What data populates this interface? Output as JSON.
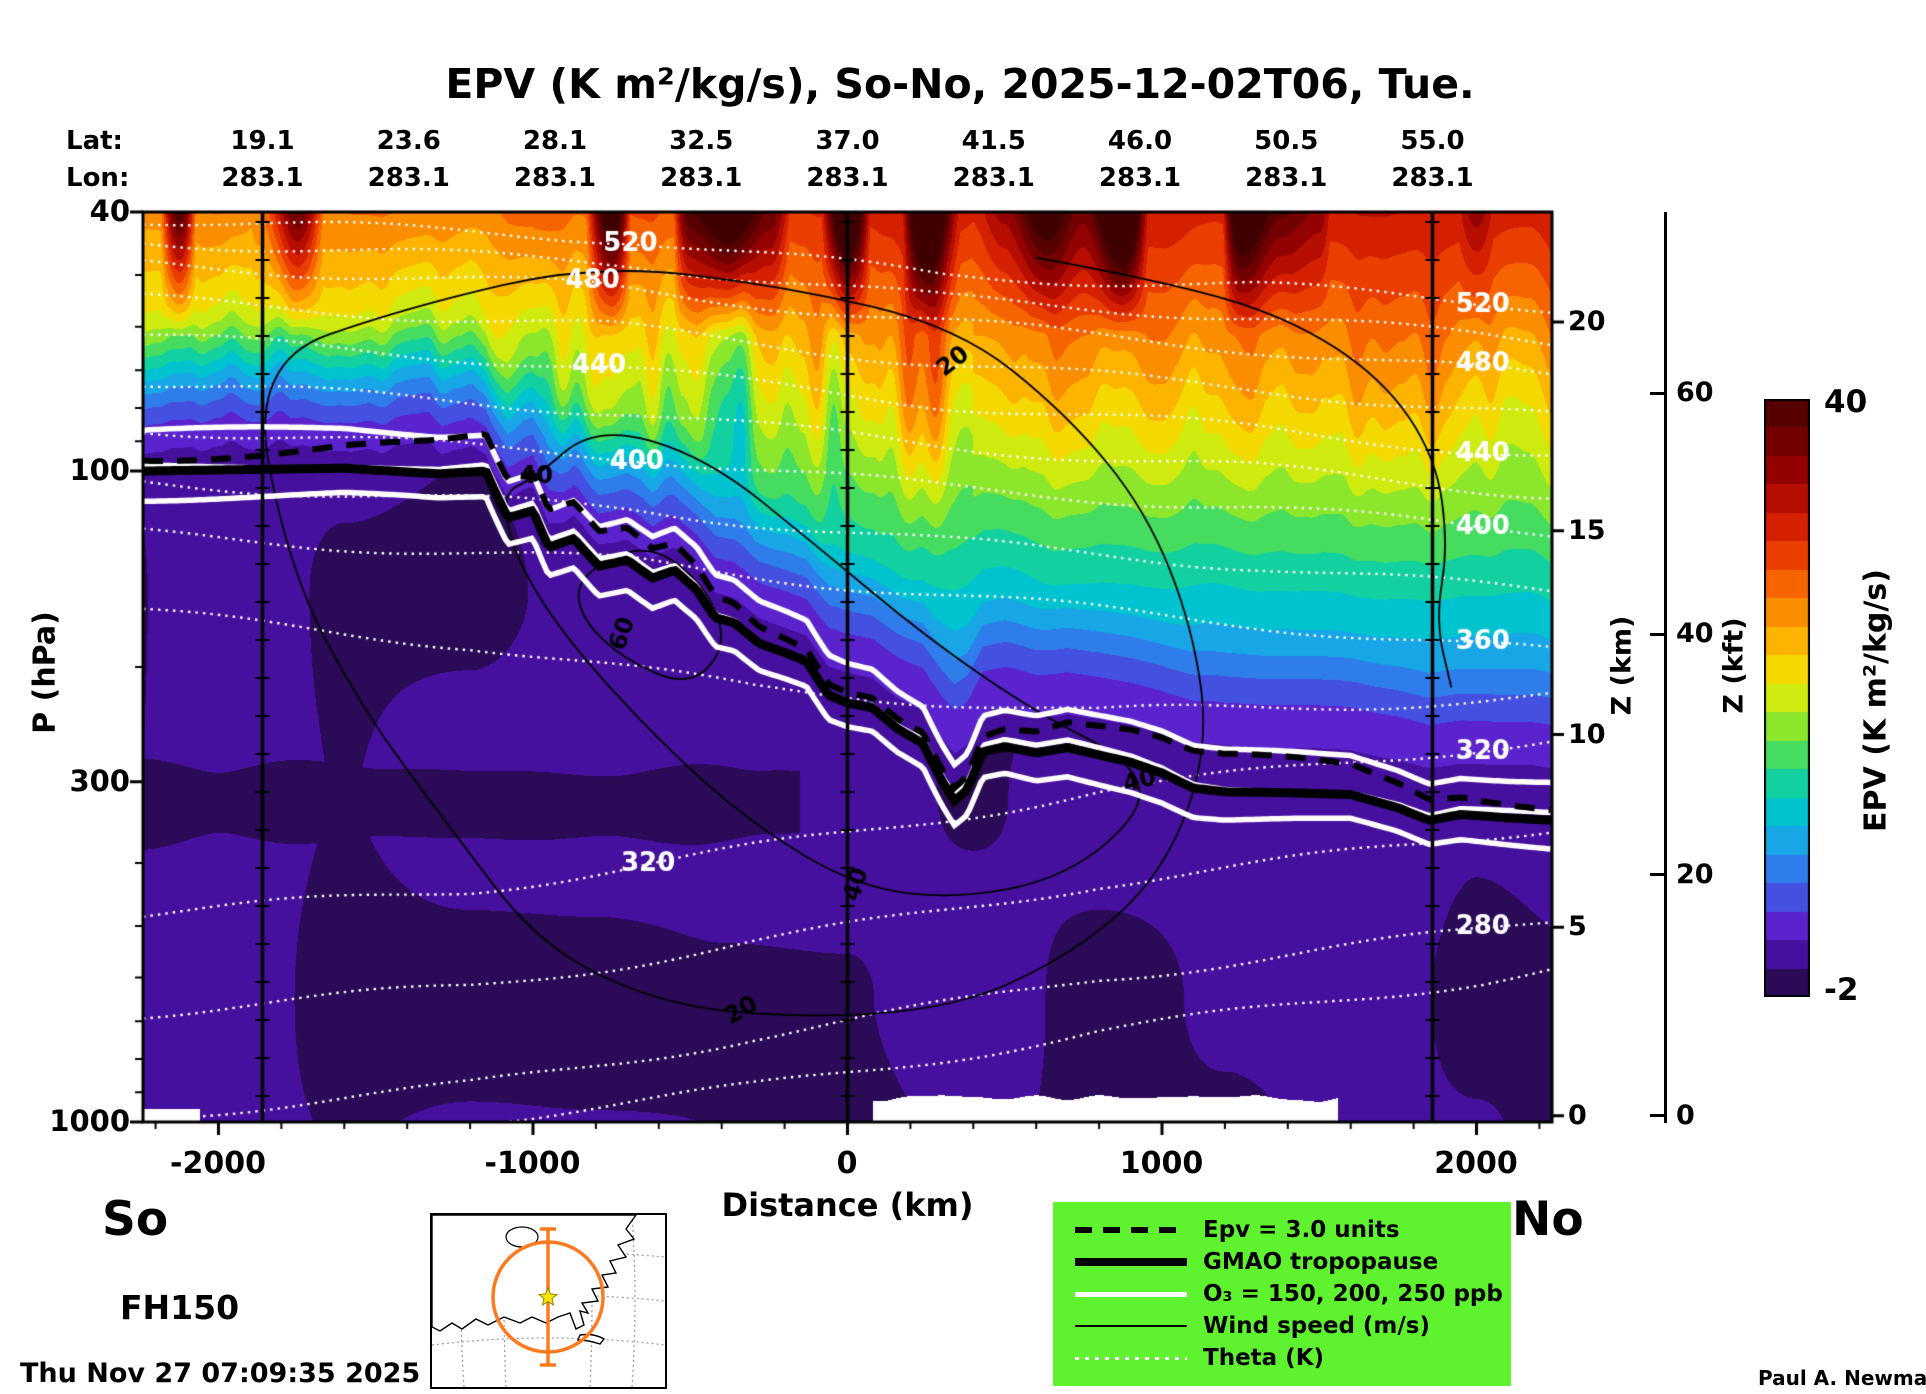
{
  "title": "EPV (K m²/kg/s), So-No, 2025-12-02T06, Tue.",
  "header": {
    "lat_prefix": "Lat:",
    "lon_prefix": "Lon:",
    "lat_values": [
      "19.1",
      "23.6",
      "28.1",
      "32.5",
      "37.0",
      "41.5",
      "46.0",
      "50.5",
      "55.0"
    ],
    "lon_values": [
      "283.1",
      "283.1",
      "283.1",
      "283.1",
      "283.1",
      "283.1",
      "283.1",
      "283.1",
      "283.1"
    ]
  },
  "axes": {
    "pressure_label": "P (hPa)",
    "distance_label": "Distance (km)",
    "z_km_label": "Z (km)",
    "z_kft_label": "Z (kft)",
    "distance_ticks": [
      "-2000",
      "-1000",
      "0",
      "1000",
      "2000"
    ]
  },
  "endpoints": {
    "south": "So",
    "north": "No"
  },
  "forecast_hour": "FH150",
  "timestamp": "Thu Nov 27 07:09:35 2025",
  "credit": "Paul A. Newman (NASA",
  "colorbar": {
    "label": "EPV (K m²/kg/s)",
    "max_label": "40",
    "min_label": "-2"
  },
  "legend": {
    "items": [
      {
        "style": "dashed-black",
        "label": "Epv = 3.0 units"
      },
      {
        "style": "thick-black",
        "label": "GMAO tropopause"
      },
      {
        "style": "white-solid",
        "label": "O₃ = 150, 200, 250 ppb"
      },
      {
        "style": "thin-black",
        "label": "Wind speed (m/s)"
      },
      {
        "style": "white-dotted",
        "label": "Theta (K)"
      }
    ]
  },
  "colors": {
    "legend_background": "#5ff22e",
    "map_path_orange": "#ff7a1e"
  },
  "chart_data": {
    "type": "heatmap",
    "title": "EPV (K m²/kg/s), So-No, 2025-12-02T06, Tue.",
    "xlabel": "Distance (km)",
    "ylabel": "P (hPa)",
    "x_range_km": [
      -2240,
      2240
    ],
    "x_ticks_km": [
      -2000,
      -1000,
      0,
      1000,
      2000
    ],
    "x_minor_step_km": 200,
    "pressure_range_hpa": [
      40,
      1000
    ],
    "pressure_ticks_hpa": [
      40,
      100,
      300,
      1000
    ],
    "pressure_minor_ticks_hpa": [
      50,
      60,
      70,
      80,
      90,
      200,
      400,
      500,
      600,
      700,
      800,
      900
    ],
    "z_km_ticks": [
      {
        "label": "0",
        "p": 978
      },
      {
        "label": "5",
        "p": 502
      },
      {
        "label": "10",
        "p": 254
      },
      {
        "label": "15",
        "p": 123.5
      },
      {
        "label": "20",
        "p": 59
      }
    ],
    "z_kft_ticks": [
      {
        "label": "0",
        "p": 978
      },
      {
        "label": "20",
        "p": 417
      },
      {
        "label": "40",
        "p": 178
      },
      {
        "label": "60",
        "p": 76
      }
    ],
    "section_lines_km": [
      -1860,
      0,
      1860
    ],
    "epv_range": [
      -2,
      40
    ],
    "colormap_stops": [
      [
        -2,
        "#2b0a57"
      ],
      [
        0,
        "#46109e"
      ],
      [
        2,
        "#5a23cd"
      ],
      [
        4,
        "#4350e0"
      ],
      [
        6,
        "#2f7ceb"
      ],
      [
        8,
        "#18a6e6"
      ],
      [
        10,
        "#00c3cf"
      ],
      [
        12,
        "#13d0a0"
      ],
      [
        14,
        "#45dc60"
      ],
      [
        16,
        "#8ce62c"
      ],
      [
        18,
        "#cfea0e"
      ],
      [
        20,
        "#f4d900"
      ],
      [
        22,
        "#fcb400"
      ],
      [
        24,
        "#fb8d00"
      ],
      [
        26,
        "#f66400"
      ],
      [
        28,
        "#e93e00"
      ],
      [
        30,
        "#d42000"
      ],
      [
        32,
        "#b50d00"
      ],
      [
        34,
        "#930200"
      ],
      [
        36,
        "#730000"
      ],
      [
        38,
        "#560000"
      ],
      [
        40,
        "#410000"
      ]
    ],
    "tropopause_km_hpa": [
      [
        -2240,
        100
      ],
      [
        -1600,
        99
      ],
      [
        -1300,
        101
      ],
      [
        -1150,
        100
      ],
      [
        -1080,
        118
      ],
      [
        -1000,
        115
      ],
      [
        -950,
        131
      ],
      [
        -870,
        127
      ],
      [
        -790,
        140
      ],
      [
        -700,
        137
      ],
      [
        -620,
        146
      ],
      [
        -550,
        142
      ],
      [
        -480,
        152
      ],
      [
        -420,
        168
      ],
      [
        -360,
        171
      ],
      [
        -280,
        184
      ],
      [
        -200,
        190
      ],
      [
        -130,
        196
      ],
      [
        -60,
        221
      ],
      [
        0,
        227
      ],
      [
        80,
        231
      ],
      [
        160,
        249
      ],
      [
        240,
        262
      ],
      [
        300,
        299
      ],
      [
        340,
        321
      ],
      [
        380,
        309
      ],
      [
        430,
        270
      ],
      [
        500,
        265
      ],
      [
        600,
        271
      ],
      [
        700,
        266
      ],
      [
        800,
        273
      ],
      [
        900,
        280
      ],
      [
        1000,
        291
      ],
      [
        1100,
        307
      ],
      [
        1200,
        311
      ],
      [
        1400,
        312
      ],
      [
        1600,
        314
      ],
      [
        1750,
        329
      ],
      [
        1850,
        344
      ],
      [
        1950,
        337
      ],
      [
        2100,
        341
      ],
      [
        2240,
        344
      ]
    ],
    "ozone_ppb_levels": [
      150,
      200,
      250
    ],
    "ozone_offset_factors": [
      0.87,
      0.985,
      1.1
    ],
    "epv3_offset_factor": 0.92,
    "theta_contours": [
      {
        "level": 520,
        "points": [
          [
            -2240,
            41
          ],
          [
            -690,
            44
          ],
          [
            300,
            50
          ],
          [
            1300,
            52
          ],
          [
            2020,
            55
          ],
          [
            2240,
            56
          ]
        ]
      },
      {
        "level": 500,
        "points": [
          [
            -2240,
            44.3
          ],
          [
            -690,
            48
          ],
          [
            300,
            54.3
          ],
          [
            1300,
            58
          ],
          [
            2020,
            62
          ],
          [
            2240,
            63.5
          ]
        ]
      },
      {
        "level": 480,
        "points": [
          [
            -2240,
            48
          ],
          [
            -810,
            52
          ],
          [
            300,
            59
          ],
          [
            1300,
            65
          ],
          [
            2020,
            70
          ],
          [
            2240,
            72
          ]
        ]
      },
      {
        "level": 460,
        "points": [
          [
            -2240,
            54.5
          ],
          [
            -750,
            60
          ],
          [
            300,
            68.3
          ],
          [
            1300,
            74.7
          ],
          [
            2020,
            80.7
          ],
          [
            2240,
            82.6
          ]
        ]
      },
      {
        "level": 440,
        "points": [
          [
            -2240,
            62
          ],
          [
            -790,
            69
          ],
          [
            300,
            79
          ],
          [
            1300,
            86
          ],
          [
            2020,
            93
          ],
          [
            2240,
            95
          ]
        ]
      },
      {
        "level": 420,
        "points": [
          [
            -2240,
            73
          ],
          [
            -700,
            81
          ],
          [
            300,
            91.5
          ],
          [
            1300,
            99
          ],
          [
            2020,
            106.5
          ],
          [
            2240,
            108.5
          ]
        ]
      },
      {
        "level": 400,
        "points": [
          [
            -2240,
            86
          ],
          [
            -670,
            95
          ],
          [
            300,
            106
          ],
          [
            1300,
            114
          ],
          [
            2020,
            122
          ],
          [
            2240,
            124
          ]
        ]
      },
      {
        "level": 380,
        "points": [
          [
            -2240,
            104
          ],
          [
            -670,
            114.5
          ],
          [
            300,
            128.3
          ],
          [
            1300,
            140
          ],
          [
            2020,
            150.6
          ],
          [
            2240,
            153.5
          ]
        ]
      },
      {
        "level": 360,
        "points": [
          [
            -2240,
            125
          ],
          [
            -670,
            138
          ],
          [
            300,
            155
          ],
          [
            1300,
            172
          ],
          [
            2020,
            186
          ],
          [
            2240,
            190
          ]
        ]
      },
      {
        "level": 340,
        "points": [
          [
            -2240,
            165
          ],
          [
            -1200,
            185
          ],
          [
            -300,
            215
          ],
          [
            800,
            235
          ],
          [
            2020,
            225
          ],
          [
            2240,
            222
          ]
        ]
      },
      {
        "level": 320,
        "points": [
          [
            -2240,
            480
          ],
          [
            -1200,
            440
          ],
          [
            -300,
            380
          ],
          [
            800,
            310
          ],
          [
            2020,
            265
          ],
          [
            2240,
            258
          ]
        ]
      },
      {
        "level": 300,
        "points": [
          [
            -2240,
            680
          ],
          [
            -1200,
            620
          ],
          [
            -300,
            530
          ],
          [
            800,
            430
          ],
          [
            2020,
            365
          ],
          [
            2240,
            352
          ]
        ]
      },
      {
        "level": 280,
        "points": [
          [
            -2240,
            980
          ],
          [
            -1200,
            880
          ],
          [
            -300,
            740
          ],
          [
            800,
            600
          ],
          [
            2020,
            508
          ],
          [
            2240,
            490
          ]
        ]
      },
      {
        "level": 270,
        "points": [
          [
            -2240,
            1070
          ],
          [
            -1200,
            995
          ],
          [
            -300,
            885
          ],
          [
            800,
            725
          ],
          [
            2020,
            605
          ],
          [
            2240,
            580
          ]
        ]
      }
    ],
    "theta_labels": [
      {
        "text": "520",
        "level": 520,
        "km": -690
      },
      {
        "text": "480",
        "level": 480,
        "km": -810
      },
      {
        "text": "440",
        "level": 440,
        "km": -790
      },
      {
        "text": "400",
        "level": 400,
        "km": -670
      },
      {
        "text": "320",
        "level": 320,
        "km": -634
      },
      {
        "text": "520",
        "level": 520,
        "km": 2020
      },
      {
        "text": "480",
        "level": 480,
        "km": 2020
      },
      {
        "text": "440",
        "level": 440,
        "km": 2020
      },
      {
        "text": "400",
        "level": 400,
        "km": 2020
      },
      {
        "text": "360",
        "level": 360,
        "km": 2020
      },
      {
        "text": "320",
        "level": 320,
        "km": 2020
      },
      {
        "text": "280",
        "level": 280,
        "km": 2020
      }
    ],
    "wind_contours": {
      "closed": [
        {
          "speed": 60,
          "points": [
            [
              -860,
              145
            ],
            [
              -640,
              128
            ],
            [
              -450,
              150
            ],
            [
              -380,
              185
            ],
            [
              -500,
              215
            ],
            [
              -710,
              195
            ],
            [
              -850,
              168
            ]
          ]
        },
        {
          "speed": 40,
          "points": [
            [
              -1100,
              108
            ],
            [
              -1000,
              103
            ],
            [
              -800,
              85
            ],
            [
              -450,
              95
            ],
            [
              -100,
              130
            ],
            [
              250,
              180
            ],
            [
              600,
              235
            ],
            [
              900,
              278
            ],
            [
              950,
              330
            ],
            [
              700,
              420
            ],
            [
              350,
              455
            ],
            [
              30,
              435
            ],
            [
              -300,
              350
            ],
            [
              -600,
              260
            ],
            [
              -900,
              180
            ],
            [
              -1060,
              135
            ]
          ]
        },
        {
          "speed": 20,
          "points": [
            [
              -1900,
              68
            ],
            [
              -1400,
              56
            ],
            [
              -800,
              48
            ],
            [
              -200,
              52
            ],
            [
              350,
              60
            ],
            [
              700,
              82
            ],
            [
              950,
              115
            ],
            [
              1100,
              175
            ],
            [
              1150,
              270
            ],
            [
              1000,
              420
            ],
            [
              700,
              560
            ],
            [
              300,
              680
            ],
            [
              -337,
              690
            ],
            [
              -700,
              630
            ],
            [
              -1000,
              520
            ],
            [
              -1250,
              360
            ],
            [
              -1550,
              230
            ],
            [
              -1780,
              140
            ]
          ]
        }
      ],
      "open": [
        {
          "speed": 20,
          "points": [
            [
              600,
              47
            ],
            [
              1000,
              51
            ],
            [
              1400,
              58
            ],
            [
              1700,
              72
            ],
            [
              1870,
              95
            ],
            [
              1910,
              130
            ],
            [
              1870,
              170
            ],
            [
              1920,
              215
            ]
          ]
        }
      ]
    },
    "wind_labels": [
      {
        "text": "20",
        "km": 337,
        "p": 68,
        "rot": -38
      },
      {
        "text": "40",
        "km": -990,
        "p": 102,
        "rot": 0
      },
      {
        "text": "60",
        "km": -713,
        "p": 178,
        "rot": -72
      },
      {
        "text": "40",
        "km": 930,
        "p": 300,
        "rot": -15
      },
      {
        "text": "40",
        "km": 30,
        "p": 432,
        "rot": -72
      },
      {
        "text": "20",
        "km": -337,
        "p": 676,
        "rot": -30
      }
    ],
    "white_gap": {
      "p_min": 935,
      "km_min": 80,
      "km_max": 1560
    }
  }
}
